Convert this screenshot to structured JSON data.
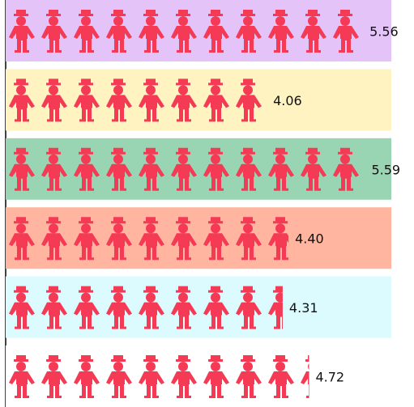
{
  "chart_data": {
    "type": "bar",
    "orientation": "horizontal",
    "values": [
      5.56,
      4.06,
      5.59,
      4.4,
      4.31,
      4.72
    ],
    "value_labels": [
      "5.56",
      "4.06",
      "5.59",
      "4.40",
      "4.31",
      "4.72"
    ],
    "color": "#f43a55",
    "row_colors": [
      "#e4c3f8",
      "#fff3c2",
      "#9ad5b3",
      "#ffb59f",
      "#dcfbff",
      "#ffffff"
    ],
    "xlim": [
      0,
      6
    ]
  }
}
